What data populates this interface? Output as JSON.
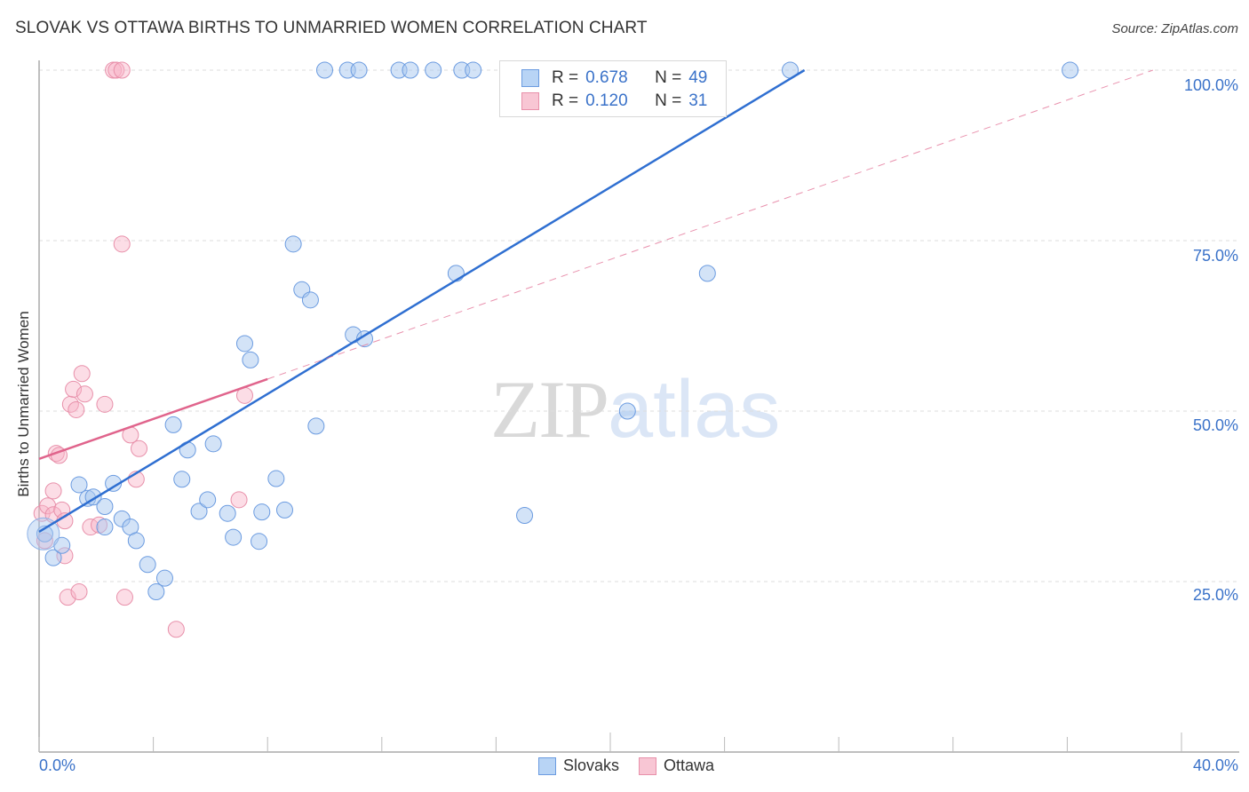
{
  "header": {
    "title": "SLOVAK VS OTTAWA BIRTHS TO UNMARRIED WOMEN CORRELATION CHART",
    "source": "Source: ZipAtlas.com"
  },
  "watermark": {
    "zip": "ZIP",
    "atlas": "atlas"
  },
  "axes": {
    "ylabel": "Births to Unmarried Women",
    "yticks": [
      "100.0%",
      "75.0%",
      "50.0%",
      "25.0%"
    ],
    "xticks": [
      "0.0%",
      "40.0%"
    ]
  },
  "legend": {
    "rows": [
      {
        "r_label": "R =",
        "r_value": "0.678",
        "n_label": "N =",
        "n_value": "49",
        "color": "#a8c8f0",
        "border": "#6b9be0"
      },
      {
        "r_label": "R =",
        "r_value": "0.120",
        "n_label": "N =",
        "n_value": "31",
        "color": "#f8c0d0",
        "border": "#e890aa"
      }
    ],
    "series": [
      {
        "name": "Slovaks",
        "color": "#b8d4f5",
        "border": "#6b9be0"
      },
      {
        "name": "Ottawa",
        "color": "#f8c6d4",
        "border": "#e890aa"
      }
    ]
  },
  "colors": {
    "blue_line": "#2f6fd1",
    "pink_line": "#e0648c",
    "grid": "#dddddd",
    "axis": "#aaaaaa"
  },
  "chart_data": {
    "type": "scatter",
    "title": "SLOVAK VS OTTAWA BIRTHS TO UNMARRIED WOMEN CORRELATION CHART",
    "xlabel": "",
    "ylabel": "Births to Unmarried Women",
    "xlim": [
      0,
      40
    ],
    "ylim": [
      0,
      100
    ],
    "x_tick_labels": [
      "0.0%",
      "40.0%"
    ],
    "y_tick_labels": [
      "25.0%",
      "50.0%",
      "75.0%",
      "100.0%"
    ],
    "grid": true,
    "legend_position": "top-center / bottom",
    "series": [
      {
        "name": "Slovaks",
        "R": 0.678,
        "N": 49,
        "trendline": {
          "x": [
            0,
            26.8
          ],
          "y": [
            32.3,
            100
          ]
        },
        "points": [
          [
            0.2,
            32.0
          ],
          [
            0.5,
            28.5
          ],
          [
            0.8,
            30.3
          ],
          [
            1.4,
            39.2
          ],
          [
            1.7,
            37.2
          ],
          [
            1.9,
            37.4
          ],
          [
            2.3,
            33.0
          ],
          [
            2.3,
            36.0
          ],
          [
            2.6,
            39.4
          ],
          [
            2.9,
            34.2
          ],
          [
            3.2,
            33.0
          ],
          [
            3.4,
            31.0
          ],
          [
            3.8,
            27.5
          ],
          [
            4.1,
            23.5
          ],
          [
            4.4,
            25.5
          ],
          [
            4.7,
            48.0
          ],
          [
            5.0,
            40.0
          ],
          [
            5.2,
            44.3
          ],
          [
            5.6,
            35.3
          ],
          [
            5.9,
            37.0
          ],
          [
            6.1,
            45.2
          ],
          [
            6.6,
            35.0
          ],
          [
            6.8,
            31.5
          ],
          [
            7.2,
            59.9
          ],
          [
            7.4,
            57.5
          ],
          [
            7.7,
            30.9
          ],
          [
            7.8,
            35.2
          ],
          [
            8.3,
            40.1
          ],
          [
            8.6,
            35.5
          ],
          [
            8.9,
            74.5
          ],
          [
            9.2,
            67.8
          ],
          [
            9.5,
            66.3
          ],
          [
            9.7,
            47.8
          ],
          [
            11.0,
            61.2
          ],
          [
            11.4,
            60.6
          ],
          [
            10.0,
            100
          ],
          [
            10.8,
            100
          ],
          [
            11.2,
            100
          ],
          [
            12.6,
            100
          ],
          [
            13.0,
            100
          ],
          [
            13.8,
            100
          ],
          [
            14.8,
            100
          ],
          [
            15.2,
            100
          ],
          [
            14.6,
            70.2
          ],
          [
            17.0,
            34.7
          ],
          [
            20.6,
            50.0
          ],
          [
            23.4,
            70.2
          ],
          [
            26.3,
            100
          ],
          [
            36.1,
            100
          ]
        ]
      },
      {
        "name": "Ottawa",
        "R": 0.12,
        "N": 31,
        "trendline": {
          "x": [
            0,
            8.0
          ],
          "y": [
            43.0,
            54.7
          ],
          "extended_dashed": {
            "x": [
              8.0,
              39.0
            ],
            "y": [
              54.7,
              100
            ]
          }
        },
        "points": [
          [
            0.1,
            35.0
          ],
          [
            0.2,
            31.0
          ],
          [
            0.3,
            36.1
          ],
          [
            0.5,
            34.8
          ],
          [
            0.5,
            38.3
          ],
          [
            0.6,
            43.8
          ],
          [
            0.7,
            43.5
          ],
          [
            0.8,
            35.5
          ],
          [
            0.9,
            28.8
          ],
          [
            0.9,
            33.9
          ],
          [
            1.0,
            22.7
          ],
          [
            1.1,
            51.0
          ],
          [
            1.2,
            53.2
          ],
          [
            1.3,
            50.2
          ],
          [
            1.4,
            23.5
          ],
          [
            1.5,
            55.5
          ],
          [
            1.6,
            52.5
          ],
          [
            1.8,
            33.0
          ],
          [
            2.1,
            33.3
          ],
          [
            2.3,
            51.0
          ],
          [
            2.6,
            100
          ],
          [
            2.7,
            100
          ],
          [
            2.9,
            100
          ],
          [
            2.9,
            74.5
          ],
          [
            3.0,
            22.7
          ],
          [
            3.2,
            46.5
          ],
          [
            3.4,
            40.0
          ],
          [
            3.5,
            44.5
          ],
          [
            4.8,
            18.0
          ],
          [
            7.0,
            37.0
          ],
          [
            7.2,
            52.3
          ]
        ]
      }
    ]
  }
}
